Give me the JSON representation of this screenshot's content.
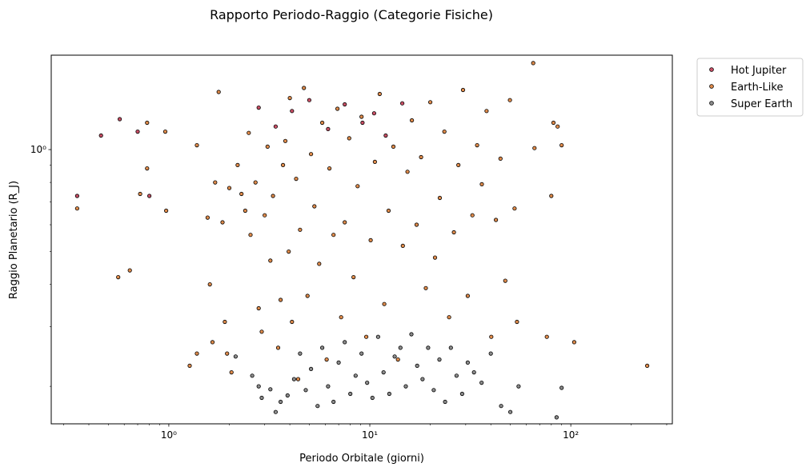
{
  "chart_data": {
    "type": "scatter",
    "title": "Rapporto Periodo-Raggio (Categorie Fisiche)",
    "xlabel": "Periodo Orbitale (giorni)",
    "ylabel": "Raggio Planetario (R_J)",
    "x_scale": "log",
    "y_scale": "log",
    "xlim": [
      0.26,
      320
    ],
    "ylim": [
      0.155,
      1.9
    ],
    "x_ticks": [
      {
        "value": 1,
        "label": "10⁰"
      },
      {
        "value": 10,
        "label": "10¹"
      },
      {
        "value": 100,
        "label": "10²"
      }
    ],
    "y_ticks": [
      {
        "value": 1,
        "label": "10⁰"
      }
    ],
    "grid": false,
    "legend_position": "outside-top-right",
    "series": [
      {
        "name": "Hot Jupiter",
        "color": "#c0304a",
        "points": [
          [
            0.35,
            0.73
          ],
          [
            0.46,
            1.1
          ],
          [
            0.57,
            1.23
          ],
          [
            0.7,
            1.13
          ],
          [
            0.8,
            0.73
          ],
          [
            2.8,
            1.33
          ],
          [
            3.4,
            1.17
          ],
          [
            4.1,
            1.3
          ],
          [
            5.0,
            1.4
          ],
          [
            6.2,
            1.15
          ],
          [
            7.5,
            1.36
          ],
          [
            9.2,
            1.2
          ],
          [
            10.5,
            1.28
          ],
          [
            12.0,
            1.1
          ],
          [
            14.5,
            1.37
          ]
        ]
      },
      {
        "name": "Earth-Like",
        "color": "#d9772c",
        "points": [
          [
            0.35,
            0.67
          ],
          [
            0.56,
            0.42
          ],
          [
            0.64,
            0.44
          ],
          [
            0.72,
            0.74
          ],
          [
            0.78,
            0.88
          ],
          [
            0.78,
            1.2
          ],
          [
            0.97,
            0.66
          ],
          [
            0.96,
            1.13
          ],
          [
            1.27,
            0.23
          ],
          [
            1.38,
            0.25
          ],
          [
            1.38,
            1.03
          ],
          [
            1.56,
            0.63
          ],
          [
            1.6,
            0.4
          ],
          [
            1.65,
            0.27
          ],
          [
            1.7,
            0.8
          ],
          [
            1.77,
            1.48
          ],
          [
            1.85,
            0.61
          ],
          [
            1.9,
            0.31
          ],
          [
            1.95,
            0.25
          ],
          [
            2.05,
            0.22
          ],
          [
            2.0,
            0.77
          ],
          [
            2.2,
            0.9
          ],
          [
            2.3,
            0.74
          ],
          [
            2.4,
            0.66
          ],
          [
            2.5,
            1.12
          ],
          [
            2.55,
            0.56
          ],
          [
            2.7,
            0.8
          ],
          [
            2.8,
            0.34
          ],
          [
            2.9,
            0.29
          ],
          [
            3.0,
            0.64
          ],
          [
            3.1,
            1.02
          ],
          [
            3.2,
            0.47
          ],
          [
            3.3,
            0.73
          ],
          [
            3.5,
            0.26
          ],
          [
            3.6,
            0.36
          ],
          [
            3.7,
            0.9
          ],
          [
            3.8,
            1.06
          ],
          [
            3.95,
            0.5
          ],
          [
            4.0,
            1.42
          ],
          [
            4.1,
            0.31
          ],
          [
            4.3,
            0.82
          ],
          [
            4.4,
            0.21
          ],
          [
            4.5,
            0.58
          ],
          [
            4.7,
            1.52
          ],
          [
            4.9,
            0.37
          ],
          [
            5.1,
            0.97
          ],
          [
            5.3,
            0.68
          ],
          [
            5.6,
            0.46
          ],
          [
            5.8,
            1.2
          ],
          [
            6.1,
            0.24
          ],
          [
            6.3,
            0.88
          ],
          [
            6.6,
            0.56
          ],
          [
            6.9,
            1.32
          ],
          [
            7.2,
            0.32
          ],
          [
            7.5,
            0.61
          ],
          [
            7.9,
            1.08
          ],
          [
            8.3,
            0.42
          ],
          [
            8.7,
            0.78
          ],
          [
            9.1,
            1.25
          ],
          [
            9.6,
            0.28
          ],
          [
            10.1,
            0.54
          ],
          [
            10.6,
            0.92
          ],
          [
            11.2,
            1.46
          ],
          [
            11.8,
            0.35
          ],
          [
            12.4,
            0.66
          ],
          [
            13.1,
            1.02
          ],
          [
            13.8,
            0.24
          ],
          [
            14.6,
            0.52
          ],
          [
            15.4,
            0.86
          ],
          [
            16.2,
            1.22
          ],
          [
            17.1,
            0.6
          ],
          [
            18.0,
            0.95
          ],
          [
            19.0,
            0.39
          ],
          [
            20.0,
            1.38
          ],
          [
            21.1,
            0.48
          ],
          [
            22.3,
            0.72
          ],
          [
            23.5,
            1.13
          ],
          [
            24.8,
            0.32
          ],
          [
            26.2,
            0.57
          ],
          [
            27.6,
            0.9
          ],
          [
            29.1,
            1.5
          ],
          [
            30.7,
            0.37
          ],
          [
            32.4,
            0.64
          ],
          [
            34.2,
            1.03
          ],
          [
            36.1,
            0.79
          ],
          [
            38.1,
            1.3
          ],
          [
            40.2,
            0.28
          ],
          [
            42.4,
            0.62
          ],
          [
            44.7,
            0.94
          ],
          [
            47.2,
            0.41
          ],
          [
            49.8,
            1.4
          ],
          [
            52.5,
            0.67
          ],
          [
            54.0,
            0.31
          ],
          [
            65.0,
            1.8
          ],
          [
            66.0,
            1.01
          ],
          [
            76.0,
            0.28
          ],
          [
            80.0,
            0.73
          ],
          [
            82.0,
            1.2
          ],
          [
            86.0,
            1.17
          ],
          [
            90.0,
            1.03
          ],
          [
            104.0,
            0.27
          ],
          [
            240.0,
            0.23
          ]
        ]
      },
      {
        "name": "Super Earth",
        "color": "#787878",
        "points": [
          [
            2.15,
            0.245
          ],
          [
            2.6,
            0.215
          ],
          [
            2.8,
            0.2
          ],
          [
            2.9,
            0.185
          ],
          [
            3.2,
            0.196
          ],
          [
            3.4,
            0.168
          ],
          [
            3.6,
            0.18
          ],
          [
            3.9,
            0.188
          ],
          [
            4.2,
            0.21
          ],
          [
            4.5,
            0.25
          ],
          [
            4.8,
            0.195
          ],
          [
            5.1,
            0.225
          ],
          [
            5.5,
            0.175
          ],
          [
            5.8,
            0.26
          ],
          [
            6.2,
            0.2
          ],
          [
            6.6,
            0.18
          ],
          [
            7.0,
            0.235
          ],
          [
            7.5,
            0.27
          ],
          [
            8.0,
            0.19
          ],
          [
            8.5,
            0.215
          ],
          [
            9.1,
            0.25
          ],
          [
            9.7,
            0.205
          ],
          [
            10.3,
            0.185
          ],
          [
            11.0,
            0.28
          ],
          [
            11.7,
            0.22
          ],
          [
            12.5,
            0.19
          ],
          [
            13.3,
            0.245
          ],
          [
            14.2,
            0.26
          ],
          [
            15.1,
            0.2
          ],
          [
            16.1,
            0.285
          ],
          [
            17.2,
            0.23
          ],
          [
            18.3,
            0.21
          ],
          [
            19.5,
            0.26
          ],
          [
            20.8,
            0.195
          ],
          [
            22.2,
            0.24
          ],
          [
            23.7,
            0.18
          ],
          [
            25.3,
            0.26
          ],
          [
            27.0,
            0.215
          ],
          [
            28.8,
            0.19
          ],
          [
            30.7,
            0.235
          ],
          [
            33.0,
            0.22
          ],
          [
            36.0,
            0.205
          ],
          [
            40.0,
            0.25
          ],
          [
            45.0,
            0.175
          ],
          [
            50.0,
            0.168
          ],
          [
            55.0,
            0.2
          ],
          [
            85.0,
            0.162
          ],
          [
            90.0,
            0.198
          ]
        ]
      }
    ]
  }
}
